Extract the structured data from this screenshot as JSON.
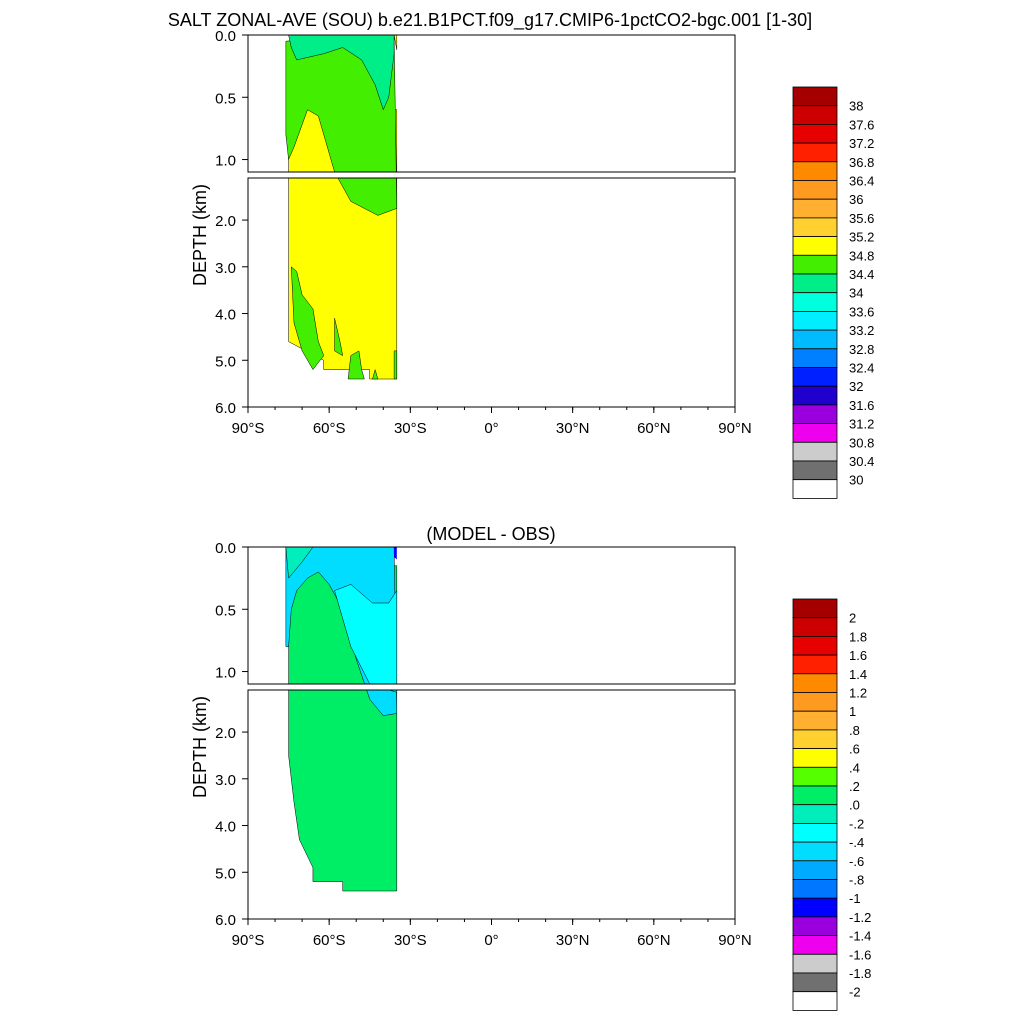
{
  "title": "SALT ZONAL-AVE (SOU) b.e21.B1PCT.f09_g17.CMIP6-1pctCO2-bgc.001 [1-30]",
  "chart_data": [
    {
      "type": "heatmap",
      "title": "SALT ZONAL-AVE (SOU) b.e21.B1PCT.f09_g17.CMIP6-1pctCO2-bgc.001 [1-30]",
      "ylabel": "DEPTH (km)",
      "xlabel": "",
      "x_ticks": [
        "90°S",
        "60°S",
        "30°S",
        "0°",
        "30°N",
        "60°N",
        "90°N"
      ],
      "y_ticks_upper": [
        "0.0",
        "0.5",
        "1.0"
      ],
      "y_ticks_lower": [
        "2.0",
        "3.0",
        "4.0",
        "5.0",
        "6.0"
      ],
      "xlim": [
        -90,
        90
      ],
      "ylim": [
        6.0,
        0.0
      ],
      "y_break_km": 1.1,
      "colorbar_levels": [
        "38",
        "37.6",
        "37.2",
        "36.8",
        "36.4",
        "36",
        "35.6",
        "35.2",
        "34.8",
        "34.4",
        "34",
        "33.6",
        "33.2",
        "32.8",
        "32.4",
        "32",
        "31.6",
        "31.2",
        "30.8",
        "30.4",
        "30"
      ],
      "colorbar_colors": [
        "#A50000",
        "#CC0000",
        "#E60000",
        "#FF2000",
        "#FF8A00",
        "#FF9A20",
        "#FFB030",
        "#FFD030",
        "#FFFF00",
        "#44EE00",
        "#00EE88",
        "#00FFDD",
        "#00EEFF",
        "#00BBFF",
        "#0080FF",
        "#0020FF",
        "#2000CC",
        "#9900DD",
        "#EE00EE",
        "#CCCCCC",
        "#707070",
        "#FFFFFF"
      ],
      "data_extent_lat": [
        -75,
        -35
      ],
      "data_extent_depth_km": [
        0.0,
        5.4
      ],
      "regions": [
        {
          "value_range": [
            33.6,
            34.0
          ],
          "lat": [
            -75,
            -35
          ],
          "depth_km": [
            0.0,
            0.3
          ]
        },
        {
          "value_range": [
            34.0,
            34.4
          ],
          "lat": [
            -75,
            -35
          ],
          "depth_km": [
            0.1,
            1.7
          ]
        },
        {
          "value_range": [
            34.4,
            34.8
          ],
          "lat": [
            -75,
            -35
          ],
          "depth_km": [
            0.6,
            5.4
          ]
        }
      ]
    },
    {
      "type": "heatmap",
      "title": "(MODEL - OBS)",
      "ylabel": "DEPTH (km)",
      "xlabel": "",
      "x_ticks": [
        "90°S",
        "60°S",
        "30°S",
        "0°",
        "30°N",
        "60°N",
        "90°N"
      ],
      "y_ticks_upper": [
        "0.0",
        "0.5",
        "1.0"
      ],
      "y_ticks_lower": [
        "2.0",
        "3.0",
        "4.0",
        "5.0",
        "6.0"
      ],
      "xlim": [
        -90,
        90
      ],
      "ylim": [
        6.0,
        0.0
      ],
      "y_break_km": 1.1,
      "colorbar_levels": [
        "2",
        "1.8",
        "1.6",
        "1.4",
        "1.2",
        "1",
        ".8",
        ".6",
        ".4",
        ".2",
        ".0",
        "-.2",
        "-.4",
        "-.6",
        "-.8",
        "-1",
        "-1.2",
        "-1.4",
        "-1.6",
        "-1.8",
        "-2"
      ],
      "colorbar_colors": [
        "#A50000",
        "#CC0000",
        "#E60000",
        "#FF2000",
        "#FF8A00",
        "#FF9A20",
        "#FFB030",
        "#FFD030",
        "#FFFF00",
        "#55FF00",
        "#00EE66",
        "#00EEBB",
        "#00FFFF",
        "#00DDFF",
        "#00AAFF",
        "#0077FF",
        "#0000FF",
        "#9900DD",
        "#EE00EE",
        "#CCCCCC",
        "#707070",
        "#FFFFFF"
      ],
      "data_extent_lat": [
        -75,
        -35
      ],
      "data_extent_depth_km": [
        0.0,
        5.4
      ],
      "regions": [
        {
          "value_range": [
            -0.6,
            -0.4
          ],
          "lat": [
            -75,
            -35
          ],
          "depth_km": [
            0.0,
            1.5
          ]
        },
        {
          "value_range": [
            -0.4,
            -0.2
          ],
          "lat": [
            -60,
            -35
          ],
          "depth_km": [
            0.3,
            1.2
          ]
        },
        {
          "value_range": [
            0.0,
            0.2
          ],
          "lat": [
            -75,
            -35
          ],
          "depth_km": [
            0.2,
            5.4
          ]
        }
      ]
    }
  ]
}
